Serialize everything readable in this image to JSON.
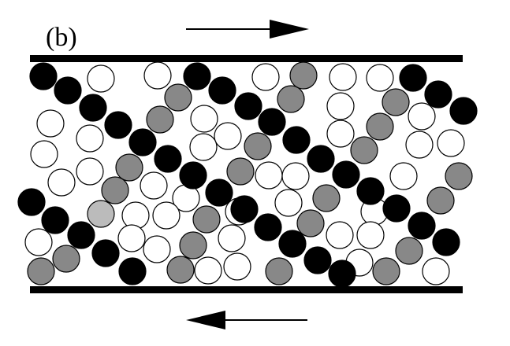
{
  "figure": {
    "panel_label": "(b)",
    "top_plate_motion": "right",
    "bottom_plate_motion": "left"
  },
  "colors": {
    "black": "#000000",
    "gray": "#888888",
    "light_gray": "#bbbbbb",
    "white": "#ffffff",
    "stroke": "#000000"
  },
  "legend_icons": [
    "top-arrow-right-icon",
    "bottom-arrow-left-icon"
  ]
}
